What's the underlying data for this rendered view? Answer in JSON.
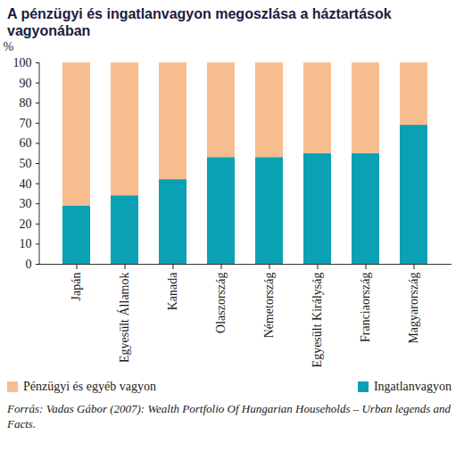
{
  "chart_data": {
    "type": "bar",
    "title": "A pénzügyi és ingatlanvagyon megoszlása a háztartások vagyonában",
    "y_label": "%",
    "caption": "Forrás: Vadas Gábor (2007): Wealth Portfolio Of Hungarian Households – Urban legends and Facts.",
    "categories": [
      "Japán",
      "Egyesült Államok",
      "Kanada",
      "Olaszország",
      "Németország",
      "Egyesült Királyság",
      "Franciaország",
      "Magyarország"
    ],
    "series": [
      {
        "name": "Pénzügyi és egyéb vagyon",
        "color": "#f8bd8f",
        "values": [
          71,
          66,
          58,
          47,
          47,
          45,
          45,
          31
        ]
      },
      {
        "name": "Ingatlanvagyon",
        "color": "#0aa1b5",
        "values": [
          29,
          34,
          42,
          53,
          53,
          55,
          55,
          69
        ]
      }
    ],
    "stacked": true,
    "ylim": [
      0,
      100
    ],
    "yticks": [
      0,
      10,
      20,
      30,
      40,
      50,
      60,
      70,
      80,
      90,
      100
    ],
    "grid": false,
    "legend": "bottom"
  }
}
